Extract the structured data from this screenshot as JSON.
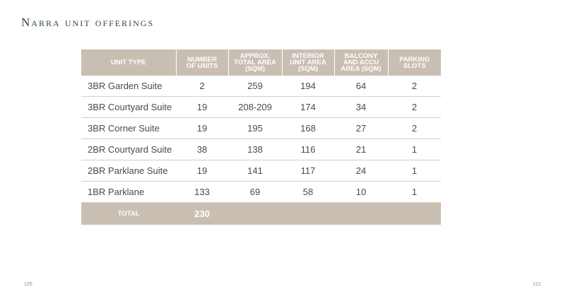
{
  "title": "Narra unit offerings",
  "columns": [
    [
      "UNIT TYPE"
    ],
    [
      "NUMBER",
      "OF UNITS"
    ],
    [
      "APPROX.",
      "TOTAL AREA",
      "(SQM)"
    ],
    [
      "INTERIOR",
      "UNIT AREA",
      "(SQM)"
    ],
    [
      "BALCONY",
      "AND ACCU",
      "AREA (SQM)"
    ],
    [
      "PARKING",
      "SLOTS"
    ]
  ],
  "rows": [
    [
      "3BR Garden Suite",
      "2",
      "259",
      "194",
      "64",
      "2"
    ],
    [
      "3BR Courtyard Suite",
      "19",
      "208-209",
      "174",
      "34",
      "2"
    ],
    [
      "3BR Corner Suite",
      "19",
      "195",
      "168",
      "27",
      "2"
    ],
    [
      "2BR Courtyard Suite",
      "38",
      "138",
      "116",
      "21",
      "1"
    ],
    [
      "2BR Parklane Suite",
      "19",
      "141",
      "117",
      "24",
      "1"
    ],
    [
      "1BR Parklane",
      "133",
      "69",
      "58",
      "10",
      "1"
    ]
  ],
  "total": {
    "label": "TOTAL",
    "value": "230"
  },
  "page_numbers": {
    "left": "120",
    "right": "121"
  }
}
